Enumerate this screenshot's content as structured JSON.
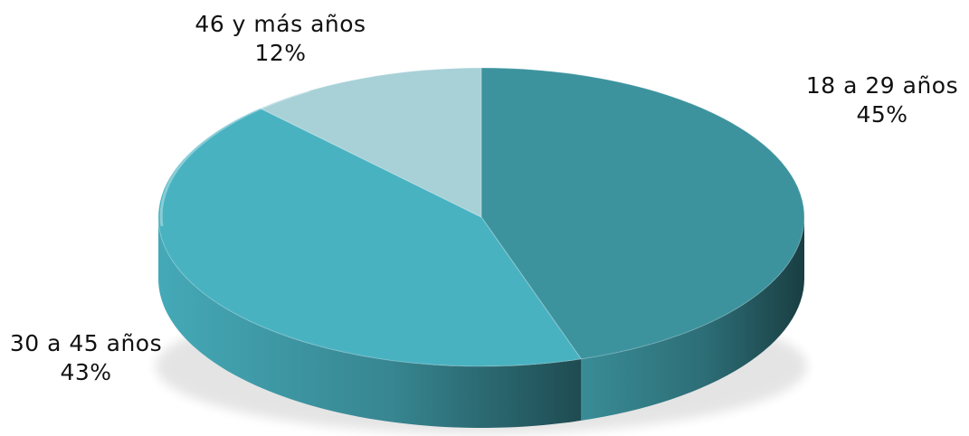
{
  "chart_data": {
    "type": "pie",
    "title": "",
    "three_d": true,
    "slices": [
      {
        "name": "18 a 29 años",
        "value": 45,
        "value_label": "45%",
        "color": "#3c939e"
      },
      {
        "name": "30 a 45 años",
        "value": 43,
        "value_label": "43%",
        "color": "#49b2c1"
      },
      {
        "name": "46 y más años",
        "value": 12,
        "value_label": "12%",
        "color": "#a7d1d7"
      }
    ],
    "legend": "none"
  }
}
